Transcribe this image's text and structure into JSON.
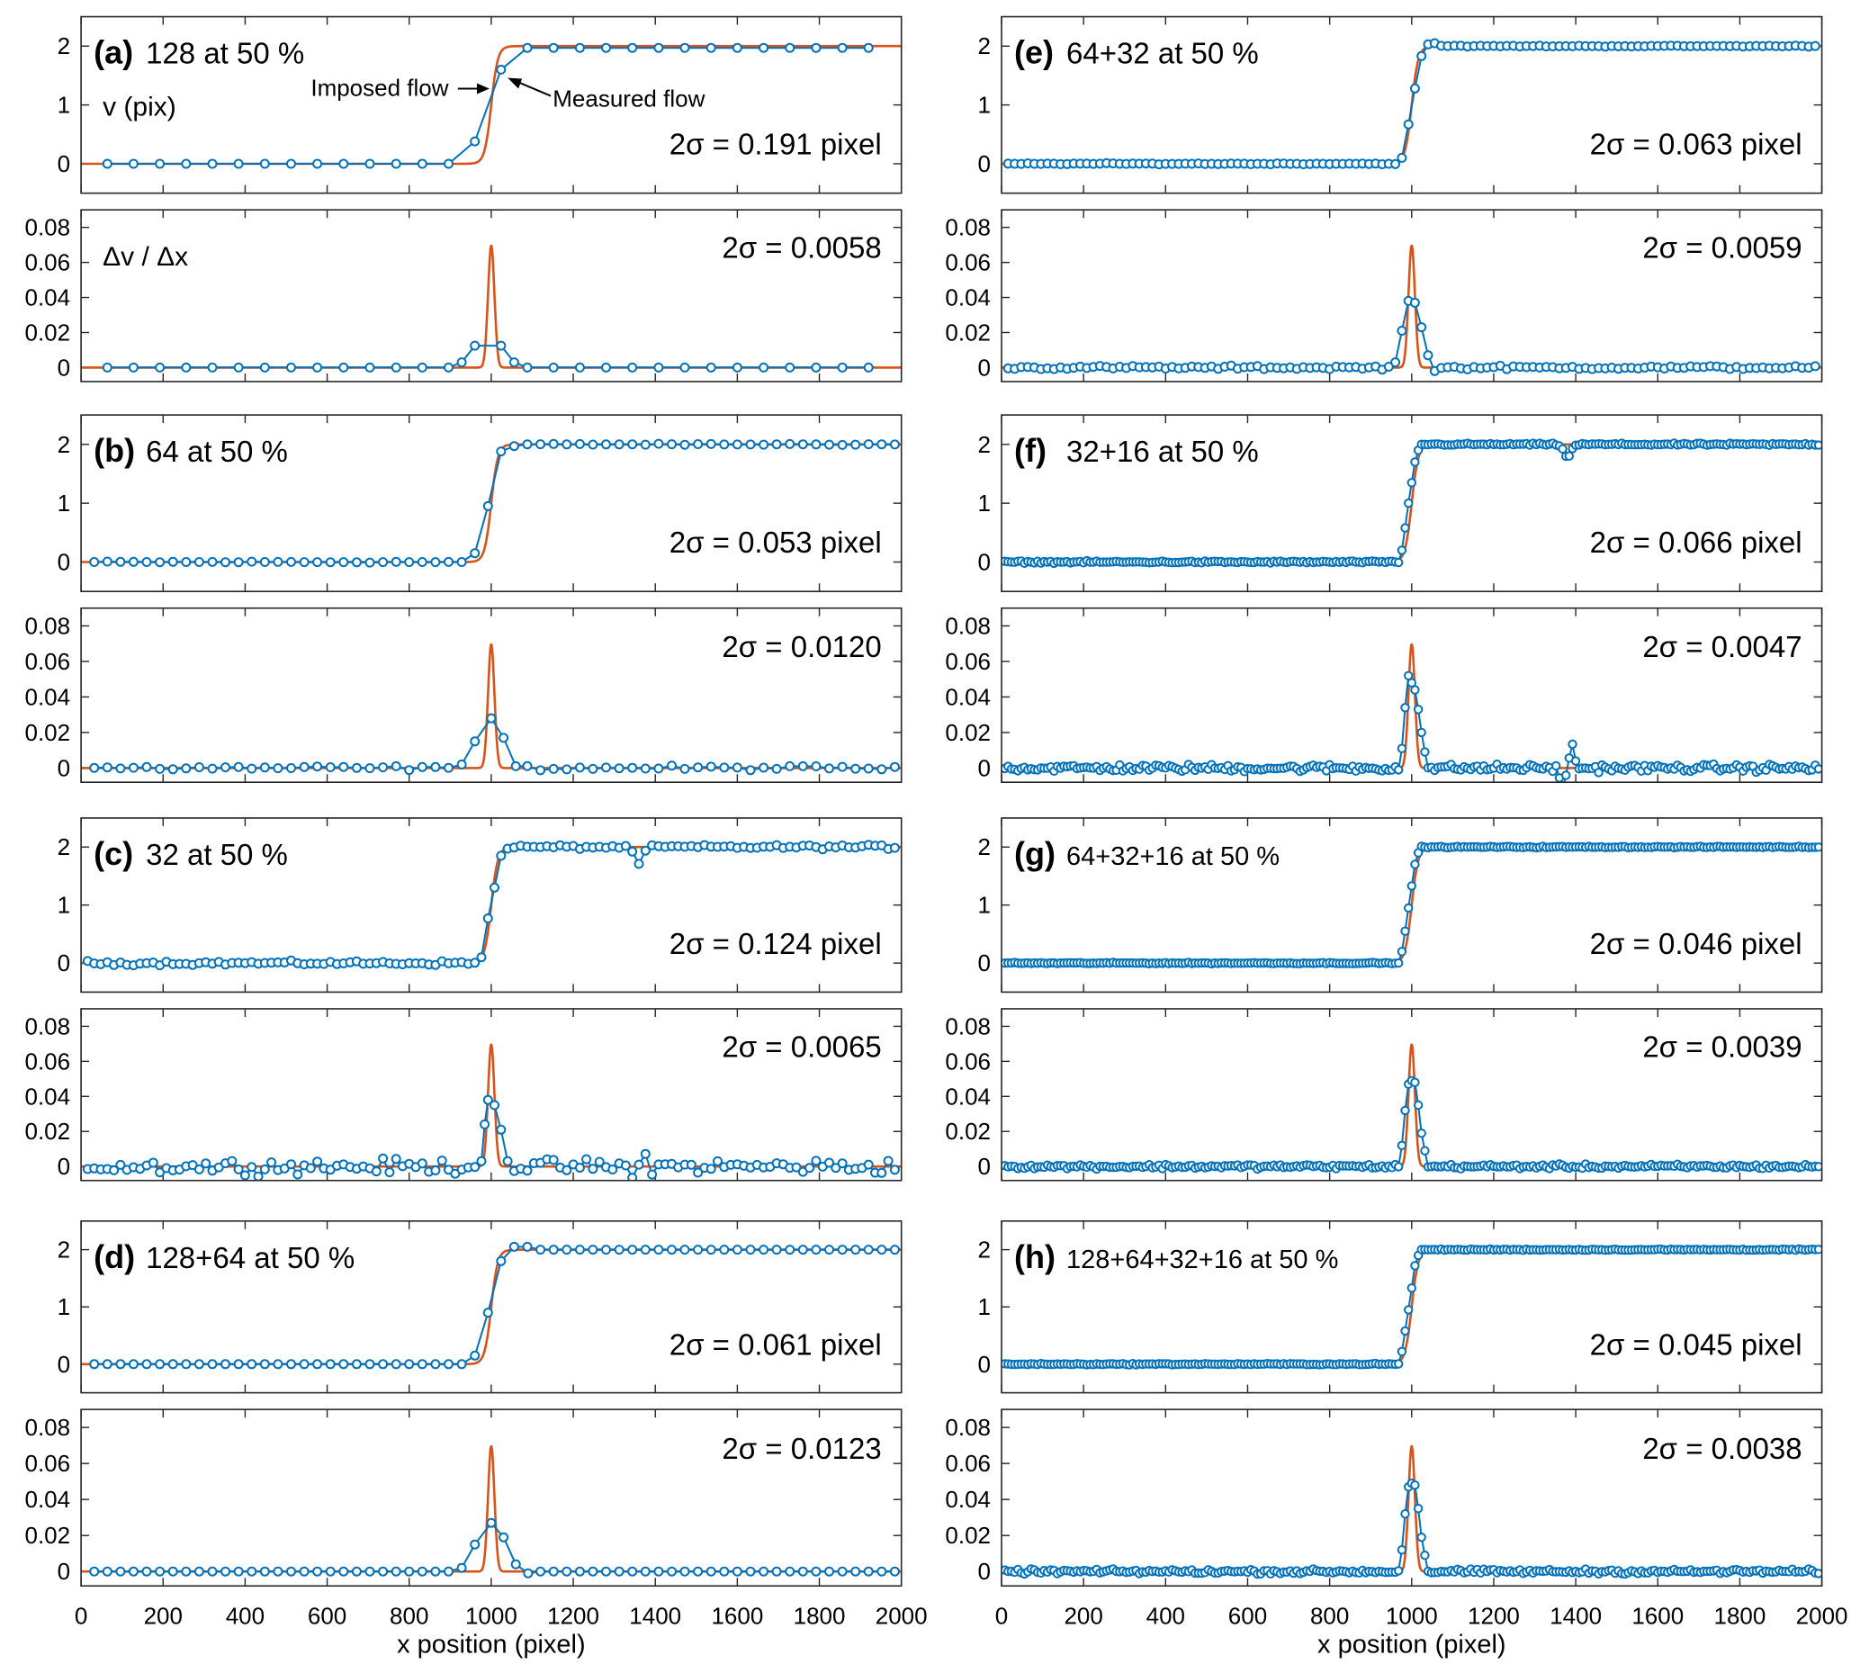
{
  "colors": {
    "imposed": "#D95319",
    "measured": "#0072BD",
    "axis": "#262626"
  },
  "chart_data": {
    "type": "line",
    "title": "",
    "xlabel": "x position (pixel)",
    "xlim": [
      0,
      2000
    ],
    "xticks": [
      0,
      200,
      400,
      600,
      800,
      1000,
      1200,
      1400,
      1600,
      1800,
      2000
    ],
    "series_names": [
      "Imposed flow",
      "Measured flow"
    ],
    "annotations": {
      "imposed": "Imposed flow",
      "measured": "Measured flow",
      "ylabel_v": "v (pix)",
      "ylabel_grad": "Δv / Δx"
    },
    "velocity_axis": {
      "ylim": [
        -0.5,
        2.5
      ],
      "yticks": [
        "0",
        "1",
        "2"
      ],
      "ytick_values": [
        0,
        1,
        2
      ]
    },
    "gradient_axis": {
      "ylim": [
        -0.008,
        0.09
      ],
      "yticks": [
        "0",
        "0.02",
        "0.04",
        "0.06",
        "0.08"
      ],
      "ytick_values": [
        0,
        0.02,
        0.04,
        0.06,
        0.08
      ]
    },
    "imposed_profile": {
      "step_low": 0,
      "step_high": 2,
      "step_center": 1000,
      "gradient_peak": 0.07
    },
    "panels": [
      {
        "id": "a",
        "letter": "(a)",
        "label": "128 at 50 %",
        "window": 128,
        "spacing": 64,
        "velocity_sigma": "2σ = 0.191 pixel",
        "gradient_sigma": "2σ = 0.0058",
        "noise": 0.0,
        "measured_velocity_points": [
          [
            64,
            0
          ],
          [
            128,
            0
          ],
          [
            192,
            0
          ],
          [
            256,
            0
          ],
          [
            320,
            0
          ],
          [
            384,
            0
          ],
          [
            448,
            0
          ],
          [
            512,
            0
          ],
          [
            576,
            0
          ],
          [
            640,
            0
          ],
          [
            704,
            0
          ],
          [
            768,
            0
          ],
          [
            832,
            0
          ],
          [
            896,
            0
          ],
          [
            960,
            0.38
          ],
          [
            1024,
            1.6
          ],
          [
            1088,
            1.97
          ],
          [
            1152,
            1.97
          ],
          [
            1216,
            1.97
          ],
          [
            1280,
            1.97
          ],
          [
            1344,
            1.97
          ],
          [
            1408,
            1.97
          ],
          [
            1472,
            1.97
          ],
          [
            1536,
            1.97
          ],
          [
            1600,
            1.97
          ],
          [
            1664,
            1.97
          ],
          [
            1728,
            1.97
          ],
          [
            1792,
            1.97
          ],
          [
            1856,
            1.97
          ],
          [
            1920,
            1.97
          ]
        ],
        "measured_gradient_points": [
          [
            64,
            0
          ],
          [
            128,
            0
          ],
          [
            192,
            0
          ],
          [
            256,
            0
          ],
          [
            320,
            0
          ],
          [
            384,
            0
          ],
          [
            448,
            0
          ],
          [
            512,
            0
          ],
          [
            576,
            0
          ],
          [
            640,
            0
          ],
          [
            704,
            0
          ],
          [
            768,
            0
          ],
          [
            832,
            0
          ],
          [
            896,
            0
          ],
          [
            928,
            0.003
          ],
          [
            960,
            0.0125
          ],
          [
            1024,
            0.0125
          ],
          [
            1056,
            0.003
          ],
          [
            1088,
            0
          ],
          [
            1152,
            0
          ],
          [
            1216,
            0
          ],
          [
            1280,
            0
          ],
          [
            1344,
            0
          ],
          [
            1408,
            0
          ],
          [
            1472,
            0
          ],
          [
            1536,
            0
          ],
          [
            1600,
            0
          ],
          [
            1664,
            0
          ],
          [
            1728,
            0
          ],
          [
            1792,
            0
          ],
          [
            1856,
            0
          ],
          [
            1920,
            0
          ]
        ]
      },
      {
        "id": "b",
        "letter": "(b)",
        "label": "64 at 50 %",
        "window": 64,
        "spacing": 32,
        "velocity_sigma": "2σ = 0.053 pixel",
        "gradient_sigma": "2σ = 0.0120",
        "noise": 0.015,
        "transition_velocity": [
          [
            960,
            0.15
          ],
          [
            992,
            0.95
          ],
          [
            1024,
            1.88
          ],
          [
            1056,
            1.97
          ]
        ],
        "transition_gradient": [
          [
            928,
            0.002
          ],
          [
            960,
            0.015
          ],
          [
            1000,
            0.028
          ],
          [
            1030,
            0.017
          ],
          [
            1060,
            0.001
          ]
        ]
      },
      {
        "id": "c",
        "letter": "(c)",
        "label": "32 at 50 %",
        "window": 32,
        "spacing": 16,
        "velocity_sigma": "2σ = 0.124 pixel",
        "gradient_sigma": "2σ = 0.0065",
        "noise": 0.05,
        "transition_velocity": [
          [
            976,
            0.1
          ],
          [
            992,
            0.77
          ],
          [
            1008,
            1.3
          ],
          [
            1024,
            1.85
          ]
        ],
        "transition_gradient": [
          [
            976,
            0.003
          ],
          [
            984,
            0.024
          ],
          [
            992,
            0.038
          ],
          [
            1008,
            0.035
          ],
          [
            1024,
            0.021
          ],
          [
            1040,
            0.003
          ]
        ],
        "anomaly": {
          "x": 1360,
          "velocity_dip": 1.67,
          "gradient_dip": -0.01,
          "gradient_bump": 0.01
        }
      },
      {
        "id": "d",
        "letter": "(d)",
        "label": "128+64 at 50 %",
        "window": "128+64",
        "spacing": 32,
        "velocity_sigma": "2σ = 0.061 pixel",
        "gradient_sigma": "2σ = 0.0123",
        "noise": 0.0,
        "transition_velocity": [
          [
            960,
            0.15
          ],
          [
            992,
            0.9
          ],
          [
            1024,
            1.8
          ],
          [
            1056,
            2.05
          ],
          [
            1088,
            2.05
          ]
        ],
        "transition_gradient": [
          [
            928,
            0.002
          ],
          [
            960,
            0.015
          ],
          [
            1000,
            0.027
          ],
          [
            1030,
            0.019
          ],
          [
            1060,
            0.004
          ],
          [
            1090,
            -0.001
          ]
        ]
      },
      {
        "id": "e",
        "letter": "(e)",
        "label": "64+32 at 50 %",
        "window": "64+32",
        "spacing": 16,
        "velocity_sigma": "2σ = 0.063 pixel",
        "gradient_sigma": "2σ = 0.0059",
        "noise": 0.012,
        "transition_velocity": [
          [
            976,
            0.1
          ],
          [
            992,
            0.67
          ],
          [
            1008,
            1.28
          ],
          [
            1024,
            1.83
          ],
          [
            1040,
            2.03
          ],
          [
            1056,
            2.05
          ]
        ],
        "transition_gradient": [
          [
            960,
            0.003
          ],
          [
            976,
            0.021
          ],
          [
            992,
            0.038
          ],
          [
            1008,
            0.037
          ],
          [
            1024,
            0.023
          ],
          [
            1040,
            0.007
          ],
          [
            1056,
            -0.002
          ]
        ]
      },
      {
        "id": "f",
        "letter": "(f)",
        "label": "32+16 at 50 %",
        "window": "32+16",
        "spacing": 8,
        "velocity_sigma": "2σ = 0.066 pixel",
        "gradient_sigma": "2σ = 0.0047",
        "noise": 0.025,
        "transition_velocity": [
          [
            976,
            0.2
          ],
          [
            984,
            0.58
          ],
          [
            992,
            1.0
          ],
          [
            1000,
            1.35
          ],
          [
            1008,
            1.7
          ],
          [
            1016,
            1.9
          ]
        ],
        "transition_gradient": [
          [
            976,
            0.011
          ],
          [
            984,
            0.034
          ],
          [
            992,
            0.052
          ],
          [
            1000,
            0.048
          ],
          [
            1008,
            0.044
          ],
          [
            1016,
            0.033
          ],
          [
            1024,
            0.02
          ],
          [
            1032,
            0.009
          ]
        ],
        "anomaly": {
          "x": 1380,
          "velocity_dip": 1.78,
          "gradient_dip": -0.012,
          "gradient_bump": 0.012
        }
      },
      {
        "id": "g",
        "letter": "(g)",
        "label": "64+32+16 at 50 %",
        "window": "64+32+16",
        "spacing": 8,
        "velocity_sigma": "2σ = 0.046 pixel",
        "gradient_sigma": "2σ = 0.0039",
        "noise": 0.015,
        "transition_velocity": [
          [
            976,
            0.2
          ],
          [
            984,
            0.55
          ],
          [
            992,
            0.95
          ],
          [
            1000,
            1.33
          ],
          [
            1008,
            1.7
          ],
          [
            1016,
            1.9
          ]
        ],
        "transition_gradient": [
          [
            976,
            0.012
          ],
          [
            984,
            0.032
          ],
          [
            992,
            0.047
          ],
          [
            1000,
            0.049
          ],
          [
            1008,
            0.048
          ],
          [
            1016,
            0.035
          ],
          [
            1024,
            0.019
          ],
          [
            1032,
            0.009
          ]
        ]
      },
      {
        "id": "h",
        "letter": "(h)",
        "label": "128+64+32+16 at 50 %",
        "window": "128+64+32+16",
        "spacing": 8,
        "velocity_sigma": "2σ = 0.045 pixel",
        "gradient_sigma": "2σ = 0.0038",
        "noise": 0.015,
        "transition_velocity": [
          [
            976,
            0.22
          ],
          [
            984,
            0.58
          ],
          [
            992,
            0.95
          ],
          [
            1000,
            1.33
          ],
          [
            1008,
            1.72
          ],
          [
            1016,
            1.9
          ]
        ],
        "transition_gradient": [
          [
            976,
            0.012
          ],
          [
            984,
            0.032
          ],
          [
            992,
            0.047
          ],
          [
            1000,
            0.049
          ],
          [
            1008,
            0.048
          ],
          [
            1016,
            0.035
          ],
          [
            1024,
            0.019
          ],
          [
            1032,
            0.009
          ]
        ]
      }
    ]
  }
}
